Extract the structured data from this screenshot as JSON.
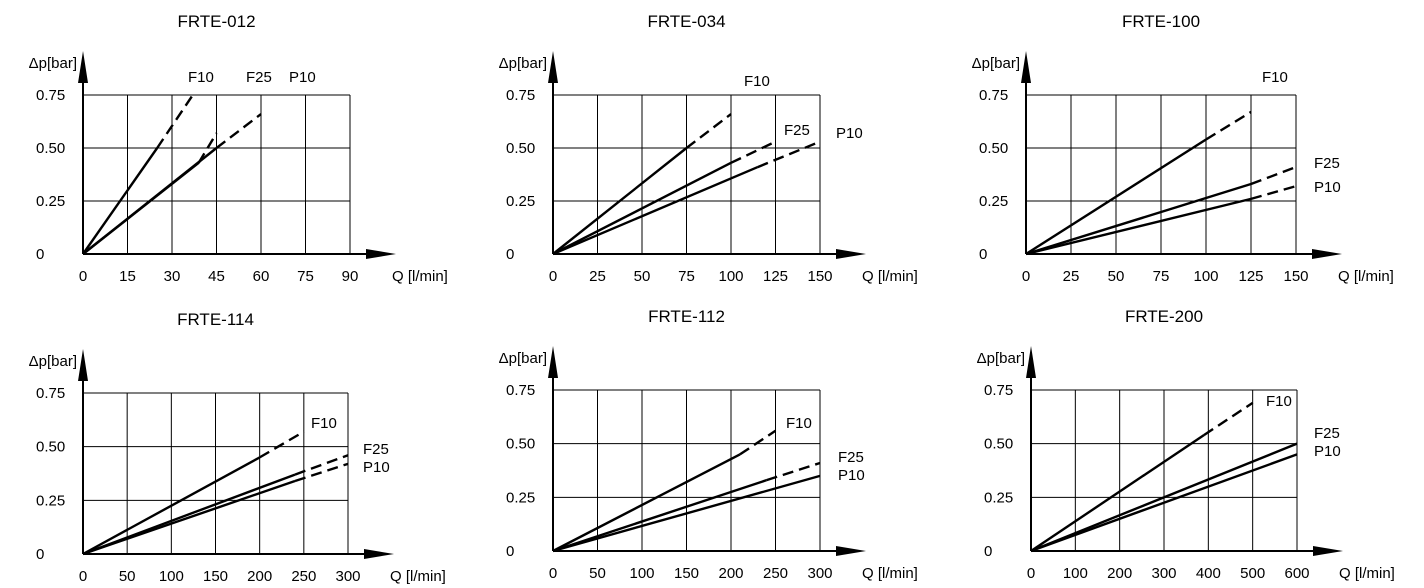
{
  "chart_data": [
    {
      "type": "line",
      "title": "FRTE-012",
      "xlabel": "Q [l/min]",
      "ylabel": "Δp[bar]",
      "xticks": [
        "0",
        "15",
        "30",
        "45",
        "60",
        "75",
        "90"
      ],
      "yticks": [
        "0",
        "0.25",
        "0.50",
        "0.75"
      ],
      "xlim": [
        0,
        90
      ],
      "ylim": [
        0,
        0.75
      ],
      "grid": true,
      "series": [
        {
          "name": "F10",
          "solid": [
            [
              0,
              0
            ],
            [
              25,
              0.5
            ]
          ],
          "dashed": [
            [
              25,
              0.5
            ],
            [
              37,
              0.75
            ]
          ]
        },
        {
          "name": "F25",
          "solid": [
            [
              0,
              0
            ],
            [
              39,
              0.43
            ]
          ],
          "dashed": [
            [
              39,
              0.43
            ],
            [
              45,
              0.57
            ]
          ]
        },
        {
          "name": "P10",
          "solid": [
            [
              0,
              0
            ],
            [
              45,
              0.5
            ]
          ],
          "dashed": [
            [
              45,
              0.5
            ],
            [
              60,
              0.66
            ]
          ]
        }
      ]
    },
    {
      "type": "line",
      "title": "FRTE-034",
      "xlabel": "Q [l/min]",
      "ylabel": "Δp[bar]",
      "xticks": [
        "0",
        "25",
        "50",
        "75",
        "100",
        "125",
        "150"
      ],
      "yticks": [
        "0",
        "0.25",
        "0.50",
        "0.75"
      ],
      "xlim": [
        0,
        150
      ],
      "ylim": [
        0,
        0.75
      ],
      "grid": true,
      "series": [
        {
          "name": "F10",
          "solid": [
            [
              0,
              0
            ],
            [
              75,
              0.5
            ]
          ],
          "dashed": [
            [
              75,
              0.5
            ],
            [
              100,
              0.66
            ]
          ]
        },
        {
          "name": "F25",
          "solid": [
            [
              0,
              0
            ],
            [
              100,
              0.43
            ]
          ],
          "dashed": [
            [
              100,
              0.43
            ],
            [
              125,
              0.53
            ]
          ]
        },
        {
          "name": "P10",
          "solid": [
            [
              0,
              0
            ],
            [
              115,
              0.41
            ]
          ],
          "dashed": [
            [
              115,
              0.41
            ],
            [
              150,
              0.53
            ]
          ]
        }
      ]
    },
    {
      "type": "line",
      "title": "FRTE-100",
      "xlabel": "Q [l/min]",
      "ylabel": "Δp[bar]",
      "xticks": [
        "0",
        "25",
        "50",
        "75",
        "100",
        "125",
        "150"
      ],
      "yticks": [
        "0",
        "0.25",
        "0.50",
        "0.75"
      ],
      "xlim": [
        0,
        150
      ],
      "ylim": [
        0,
        0.75
      ],
      "grid": true,
      "series": [
        {
          "name": "F10",
          "solid": [
            [
              0,
              0
            ],
            [
              100,
              0.54
            ]
          ],
          "dashed": [
            [
              100,
              0.54
            ],
            [
              125,
              0.67
            ]
          ]
        },
        {
          "name": "F25",
          "solid": [
            [
              0,
              0
            ],
            [
              125,
              0.33
            ]
          ],
          "dashed": [
            [
              125,
              0.33
            ],
            [
              150,
              0.41
            ]
          ]
        },
        {
          "name": "P10",
          "solid": [
            [
              0,
              0
            ],
            [
              125,
              0.26
            ]
          ],
          "dashed": [
            [
              125,
              0.26
            ],
            [
              150,
              0.32
            ]
          ]
        }
      ]
    },
    {
      "type": "line",
      "title": "FRTE-114",
      "xlabel": "Q [l/min]",
      "ylabel": "Δp[bar]",
      "xticks": [
        "0",
        "50",
        "100",
        "150",
        "200",
        "250",
        "300"
      ],
      "yticks": [
        "0",
        "0.25",
        "0.50",
        "0.75"
      ],
      "xlim": [
        0,
        300
      ],
      "ylim": [
        0,
        0.75
      ],
      "grid": true,
      "series": [
        {
          "name": "F10",
          "solid": [
            [
              0,
              0
            ],
            [
              200,
              0.45
            ]
          ],
          "dashed": [
            [
              200,
              0.45
            ],
            [
              250,
              0.57
            ]
          ]
        },
        {
          "name": "F25",
          "solid": [
            [
              0,
              0
            ],
            [
              240,
              0.37
            ]
          ],
          "dashed": [
            [
              240,
              0.37
            ],
            [
              300,
              0.46
            ]
          ]
        },
        {
          "name": "P10",
          "solid": [
            [
              0,
              0
            ],
            [
              240,
              0.34
            ]
          ],
          "dashed": [
            [
              240,
              0.34
            ],
            [
              300,
              0.42
            ]
          ]
        }
      ]
    },
    {
      "type": "line",
      "title": "FRTE-112",
      "xlabel": "Q [l/min]",
      "ylabel": "Δp[bar]",
      "xticks": [
        "0",
        "50",
        "100",
        "150",
        "200",
        "250",
        "300"
      ],
      "yticks": [
        "0",
        "0.25",
        "0.50",
        "0.75"
      ],
      "xlim": [
        0,
        300
      ],
      "ylim": [
        0,
        0.75
      ],
      "grid": true,
      "series": [
        {
          "name": "F10",
          "solid": [
            [
              0,
              0
            ],
            [
              210,
              0.45
            ]
          ],
          "dashed": [
            [
              210,
              0.45
            ],
            [
              250,
              0.56
            ]
          ]
        },
        {
          "name": "F25",
          "solid": [
            [
              0,
              0
            ],
            [
              240,
              0.33
            ]
          ],
          "dashed": [
            [
              240,
              0.33
            ],
            [
              300,
              0.41
            ]
          ]
        },
        {
          "name": "P10",
          "solid": [
            [
              0,
              0
            ],
            [
              300,
              0.35
            ]
          ],
          "dashed": []
        }
      ]
    },
    {
      "type": "line",
      "title": "FRTE-200",
      "xlabel": "Q [l/min]",
      "ylabel": "Δp[bar]",
      "xticks": [
        "0",
        "100",
        "200",
        "300",
        "400",
        "500",
        "600"
      ],
      "yticks": [
        "0",
        "0.25",
        "0.50",
        "0.75"
      ],
      "xlim": [
        0,
        600
      ],
      "ylim": [
        0,
        0.75
      ],
      "grid": true,
      "series": [
        {
          "name": "F10",
          "solid": [
            [
              0,
              0
            ],
            [
              390,
              0.54
            ]
          ],
          "dashed": [
            [
              390,
              0.54
            ],
            [
              500,
              0.69
            ]
          ]
        },
        {
          "name": "F25",
          "solid": [
            [
              0,
              0
            ],
            [
              600,
              0.5
            ]
          ],
          "dashed": []
        },
        {
          "name": "P10",
          "solid": [
            [
              0,
              0
            ],
            [
              600,
              0.45
            ]
          ],
          "dashed": []
        }
      ]
    }
  ]
}
